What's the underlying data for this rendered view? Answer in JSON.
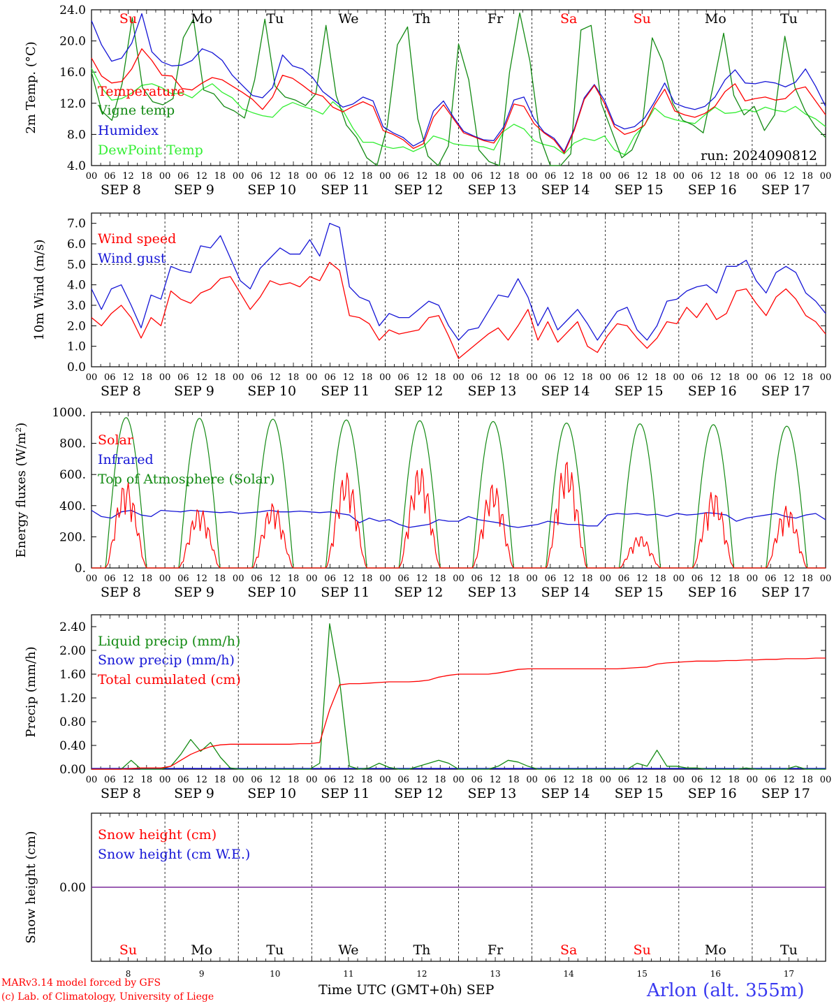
{
  "chart_data": [
    {
      "type": "line",
      "ylabel": "2m Temp. (°C)",
      "ylim": [
        4,
        24
      ],
      "yticks": [
        "4.0",
        "8.0",
        "12.0",
        "16.0",
        "20.0",
        "24.0"
      ],
      "day_labels": [
        "Su",
        "Mo",
        "Tu",
        "We",
        "Th",
        "Fr",
        "Sa",
        "Su",
        "Mo",
        "Tu"
      ],
      "run_label": "run: 2024090812",
      "x_hours": "3-hourly from 2024-09-08 00 UTC to 2024-09-18 00 UTC",
      "series": [
        {
          "name": "Temperature",
          "color": "#ff0000",
          "values": [
            17.8,
            15.5,
            14.6,
            14.8,
            16.4,
            19.0,
            17.5,
            15.6,
            15.5,
            13.9,
            13.7,
            14.6,
            15.3,
            15.0,
            14.2,
            13.4,
            12.5,
            11.2,
            12.8,
            15.6,
            15.2,
            14.3,
            13.3,
            12.9,
            11.5,
            10.9,
            11.6,
            12.2,
            11.6,
            8.5,
            8.0,
            7.3,
            6.2,
            6.8,
            10.2,
            11.8,
            10.0,
            8.2,
            7.7,
            7.2,
            6.9,
            8.6,
            11.9,
            11.6,
            9.4,
            8.2,
            7.3,
            5.6,
            8.5,
            12.5,
            14.3,
            12.0,
            9.0,
            8.0,
            8.4,
            9.2,
            11.8,
            13.8,
            11.0,
            10.5,
            10.2,
            10.7,
            11.6,
            13.5,
            14.5,
            12.3,
            12.6,
            12.8,
            12.4,
            12.6,
            13.8,
            14.1,
            12.3,
            10.5
          ]
        },
        {
          "name": "Vigne temp",
          "color": "#138a13",
          "values": [
            16.0,
            11.0,
            9.8,
            14.5,
            23.0,
            14.0,
            12.2,
            11.8,
            12.6,
            20.4,
            22.8,
            13.7,
            13.2,
            11.6,
            11.0,
            10.1,
            15.0,
            22.8,
            14.2,
            12.8,
            12.4,
            11.7,
            13.2,
            22.0,
            13.0,
            9.2,
            7.6,
            5.0,
            4.0,
            9.0,
            19.5,
            21.8,
            10.0,
            5.2,
            4.0,
            6.5,
            19.6,
            15.0,
            6.0,
            4.5,
            4.0,
            16.0,
            23.6,
            17.4,
            7.6,
            4.0,
            4.0,
            5.5,
            21.4,
            22.0,
            12.0,
            8.5,
            5.0,
            6.0,
            9.0,
            20.4,
            17.4,
            12.0,
            9.8,
            9.2,
            8.2,
            14.4,
            21.0,
            13.0,
            10.5,
            11.6,
            8.5,
            10.5,
            20.6,
            14.0,
            11.0,
            9.0,
            7.6
          ]
        },
        {
          "name": "Humidex",
          "color": "#1515d6",
          "values": [
            22.6,
            19.5,
            17.4,
            17.8,
            19.7,
            23.5,
            18.6,
            17.3,
            16.8,
            16.9,
            17.5,
            19.0,
            18.5,
            17.5,
            15.6,
            14.3,
            13.0,
            12.7,
            14.0,
            18.2,
            16.8,
            16.4,
            15.3,
            13.5,
            12.5,
            11.5,
            11.9,
            12.8,
            12.3,
            9.0,
            8.2,
            7.6,
            6.5,
            7.2,
            11.0,
            12.3,
            10.2,
            8.4,
            7.8,
            7.3,
            7.2,
            9.0,
            12.4,
            12.8,
            10.0,
            8.3,
            7.5,
            5.8,
            8.7,
            12.7,
            14.4,
            12.4,
            9.3,
            8.7,
            9.0,
            10.1,
            12.2,
            14.6,
            12.0,
            11.5,
            11.2,
            11.6,
            12.8,
            15.0,
            16.3,
            14.6,
            14.5,
            14.8,
            14.6,
            14.1,
            14.7,
            16.4,
            14.2,
            11.6
          ]
        },
        {
          "name": "DewPoint Temp",
          "color": "#33ee33",
          "values": [
            16.5,
            14.0,
            12.4,
            12.6,
            13.3,
            14.3,
            14.5,
            14.0,
            13.2,
            13.3,
            12.7,
            13.8,
            14.5,
            13.4,
            12.7,
            11.3,
            10.8,
            10.4,
            10.2,
            11.5,
            12.1,
            11.6,
            11.2,
            10.6,
            12.2,
            11.1,
            8.8,
            7.0,
            7.0,
            6.5,
            6.2,
            6.4,
            5.8,
            6.4,
            7.8,
            7.4,
            6.8,
            6.6,
            6.5,
            6.4,
            6.0,
            8.4,
            9.3,
            8.7,
            7.2,
            6.7,
            6.4,
            5.5,
            6.9,
            7.5,
            7.2,
            7.8,
            6.0,
            5.4,
            7.8,
            9.2,
            11.4,
            10.3,
            9.9,
            9.6,
            9.4,
            10.5,
            11.5,
            10.7,
            10.8,
            11.2,
            10.9,
            11.5,
            11.1,
            10.9,
            11.6,
            10.6,
            10.0,
            9.0
          ]
        }
      ]
    },
    {
      "type": "line",
      "ylabel": "10m Wind (m/s)",
      "ylim": [
        0,
        7.5
      ],
      "yticks": [
        "0.0",
        "1.0",
        "2.0",
        "3.0",
        "4.0",
        "5.0",
        "6.0",
        "7.0"
      ],
      "reference_line": 5.0,
      "series": [
        {
          "name": "Wind speed",
          "color": "#ff0000",
          "values": [
            2.4,
            2.0,
            2.6,
            3.0,
            2.4,
            1.4,
            2.4,
            2.0,
            3.7,
            3.3,
            3.1,
            3.6,
            3.8,
            4.3,
            4.4,
            3.6,
            2.8,
            3.4,
            4.2,
            4.0,
            4.1,
            3.9,
            4.4,
            4.2,
            5.1,
            4.7,
            2.5,
            2.4,
            2.1,
            1.3,
            1.8,
            1.6,
            1.7,
            1.8,
            2.4,
            2.5,
            1.5,
            0.4,
            0.8,
            1.2,
            1.6,
            1.9,
            1.3,
            2.0,
            2.8,
            1.3,
            2.2,
            1.2,
            1.7,
            2.2,
            1.0,
            0.7,
            1.5,
            2.1,
            2.0,
            1.4,
            0.9,
            1.4,
            2.2,
            2.1,
            2.9,
            2.4,
            3.1,
            2.3,
            2.6,
            3.7,
            3.8,
            3.1,
            2.5,
            3.4,
            3.8,
            3.3,
            2.5,
            2.2,
            1.6
          ]
        },
        {
          "name": "Wind gust",
          "color": "#1515d6",
          "values": [
            3.8,
            2.8,
            3.8,
            4.0,
            3.0,
            1.9,
            3.5,
            3.3,
            4.9,
            4.7,
            4.6,
            5.9,
            5.8,
            6.4,
            5.3,
            4.2,
            3.8,
            4.8,
            5.3,
            5.8,
            5.5,
            5.5,
            6.2,
            5.4,
            7.0,
            6.8,
            3.9,
            3.4,
            3.2,
            2.0,
            2.6,
            2.4,
            2.4,
            2.8,
            3.2,
            3.0,
            2.0,
            1.3,
            1.8,
            1.9,
            2.7,
            3.5,
            3.4,
            4.3,
            3.4,
            2.0,
            2.9,
            1.8,
            2.3,
            2.8,
            2.1,
            1.3,
            2.0,
            2.7,
            2.9,
            1.8,
            1.3,
            2.0,
            3.2,
            3.3,
            3.7,
            3.9,
            4.0,
            3.6,
            4.9,
            4.9,
            5.2,
            4.2,
            3.6,
            4.6,
            4.9,
            4.6,
            3.6,
            3.2,
            2.6
          ]
        }
      ]
    },
    {
      "type": "line",
      "ylabel": "Energy fluxes (W/m²)",
      "ylim": [
        0,
        1000
      ],
      "yticks": [
        "0.",
        "200.",
        "400.",
        "600.",
        "800.",
        "1000."
      ],
      "series": [
        {
          "name": "Solar",
          "color": "#ff0000",
          "daily_peaks": [
            560,
            390,
            420,
            620,
            660,
            550,
            700,
            210,
            500,
            400
          ]
        },
        {
          "name": "Infrared",
          "color": "#1515d6",
          "values": [
            370,
            330,
            320,
            360,
            370,
            340,
            330,
            370,
            365,
            360,
            370,
            365,
            360,
            355,
            360,
            350,
            355,
            360,
            370,
            360,
            360,
            365,
            360,
            355,
            360,
            350,
            340,
            290,
            320,
            300,
            310,
            280,
            260,
            270,
            280,
            310,
            300,
            300,
            330,
            310,
            300,
            290,
            270,
            260,
            270,
            280,
            300,
            290,
            280,
            280,
            270,
            270,
            340,
            350,
            345,
            350,
            340,
            345,
            330,
            350,
            340,
            345,
            355,
            350,
            340,
            300,
            320,
            330,
            340,
            350,
            330,
            320,
            340,
            350,
            310
          ]
        },
        {
          "name": "Top of Atmosphere (Solar)",
          "color": "#138a13",
          "daily_peaks": [
            965,
            960,
            955,
            950,
            945,
            940,
            930,
            925,
            920,
            910
          ]
        }
      ]
    },
    {
      "type": "line",
      "ylabel": "Precip (mm/h)",
      "ylim": [
        0,
        2.6
      ],
      "yticks": [
        "0.00",
        "0.40",
        "0.80",
        "1.20",
        "1.60",
        "2.00",
        "2.40"
      ],
      "series": [
        {
          "name": "Liquid precip (mm/h)",
          "color": "#138a13",
          "values": [
            0,
            0,
            0,
            0,
            0.15,
            0,
            0,
            0,
            0.05,
            0.25,
            0.5,
            0.3,
            0.45,
            0.2,
            0.02,
            0,
            0,
            0,
            0,
            0,
            0,
            0,
            0,
            0.1,
            2.45,
            1.5,
            0.05,
            0,
            0.02,
            0.1,
            0.03,
            0,
            0,
            0.05,
            0.1,
            0.15,
            0.1,
            0,
            0,
            0,
            0,
            0.05,
            0.15,
            0.12,
            0.05,
            0,
            0,
            0,
            0,
            0,
            0,
            0,
            0,
            0,
            0,
            0.1,
            0.05,
            0.32,
            0.05,
            0.05,
            0.02,
            0.02,
            0,
            0,
            0,
            0,
            0.02,
            0,
            0,
            0,
            0,
            0.05,
            0,
            0,
            0
          ]
        },
        {
          "name": "Snow precip (mm/h)",
          "color": "#1515d6",
          "values": []
        },
        {
          "name": "Total cumulated (cm)",
          "color": "#ff0000",
          "values": [
            0,
            0,
            0,
            0,
            0.01,
            0.02,
            0.02,
            0.02,
            0.05,
            0.15,
            0.25,
            0.32,
            0.38,
            0.41,
            0.42,
            0.42,
            0.42,
            0.42,
            0.42,
            0.42,
            0.42,
            0.43,
            0.43,
            0.45,
            1.0,
            1.42,
            1.44,
            1.44,
            1.45,
            1.46,
            1.47,
            1.47,
            1.47,
            1.48,
            1.5,
            1.55,
            1.58,
            1.6,
            1.6,
            1.6,
            1.6,
            1.62,
            1.65,
            1.68,
            1.69,
            1.69,
            1.69,
            1.69,
            1.69,
            1.69,
            1.69,
            1.69,
            1.69,
            1.69,
            1.7,
            1.71,
            1.72,
            1.77,
            1.79,
            1.8,
            1.81,
            1.82,
            1.82,
            1.82,
            1.83,
            1.83,
            1.84,
            1.84,
            1.85,
            1.85,
            1.86,
            1.86,
            1.86,
            1.87,
            1.87
          ]
        }
      ]
    },
    {
      "type": "line",
      "ylabel": "Snow height (cm)",
      "yticks": [
        "0.00"
      ],
      "series": [
        {
          "name": "Snow height (cm)",
          "color": "#ff0000",
          "values": [
            0,
            0
          ]
        },
        {
          "name": "Snow height (cm W.E.)",
          "color": "#1515d6",
          "values": [
            0,
            0
          ]
        }
      ]
    }
  ],
  "x_axis": {
    "hour_labels": [
      "00",
      "06",
      "12",
      "18"
    ],
    "date_labels": [
      "SEP  8",
      "SEP  9",
      "SEP 10",
      "SEP 11",
      "SEP 12",
      "SEP 13",
      "SEP 14",
      "SEP 15",
      "SEP 16",
      "SEP 17"
    ],
    "day_numbers": [
      "8",
      "9",
      "10",
      "11",
      "12",
      "13",
      "14",
      "15",
      "16",
      "17"
    ],
    "weekend_color": "#ff0000",
    "weekday_color": "#000000",
    "weekend_days": [
      0,
      6,
      7
    ]
  },
  "footer": {
    "credit_line1": "MARv3.14 model forced by GFS",
    "credit_line2": "(c) Lab. of Climatology, University of Liege",
    "x_title": "Time UTC (GMT+0h) SEP",
    "station": "Arlon (alt. 355m)"
  }
}
